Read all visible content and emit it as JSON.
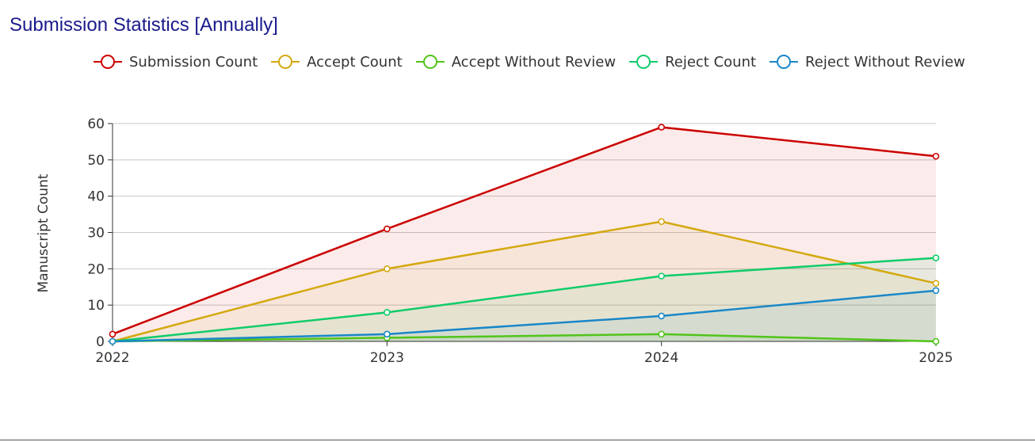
{
  "page": {
    "title": "Submission Statistics [Annually]"
  },
  "chart_data": {
    "type": "line",
    "area": true,
    "title": "Submission Statistics [Annually]",
    "xlabel": "",
    "ylabel": "Manuscript Count",
    "categories": [
      "2022",
      "2023",
      "2024",
      "2025"
    ],
    "ylim": [
      0,
      60
    ],
    "yticks": [
      "0",
      "10",
      "20",
      "30",
      "40",
      "50",
      "60"
    ],
    "grid": true,
    "legend_position": "top",
    "series": [
      {
        "name": "Submission Count",
        "color": "#cc0000",
        "values": [
          2,
          31,
          59,
          51
        ]
      },
      {
        "name": "Accept Count",
        "color": "#d4a910",
        "values": [
          0,
          20,
          33,
          16
        ]
      },
      {
        "name": "Accept Without Review",
        "color": "#52c41a",
        "values": [
          0,
          1,
          2,
          0
        ]
      },
      {
        "name": "Reject Count",
        "color": "#10cc6a",
        "values": [
          0,
          8,
          18,
          23
        ]
      },
      {
        "name": "Reject Without Review",
        "color": "#1a87c8",
        "values": [
          0,
          2,
          7,
          14
        ]
      }
    ]
  }
}
